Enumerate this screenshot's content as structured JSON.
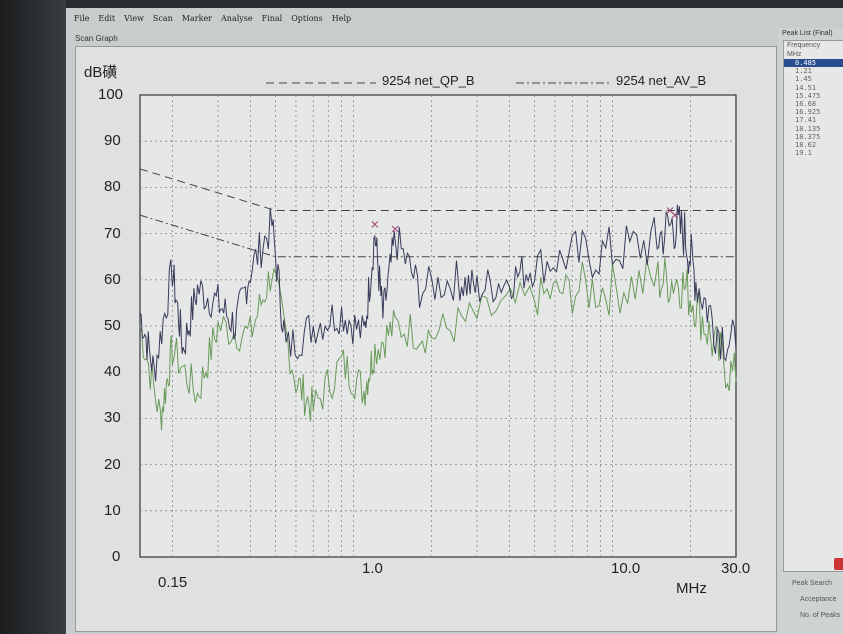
{
  "menu": [
    "File",
    "Edit",
    "View",
    "Scan",
    "Marker",
    "Analyse",
    "Final",
    "Options",
    "Help"
  ],
  "panel_title": "Scan Graph",
  "peak_list": {
    "title": "Peak List (Final)",
    "header1": "Frequency",
    "header2": "MHz",
    "selected": 0,
    "items": [
      "0.485",
      "1.21",
      "1.45",
      "14.51",
      "15.475",
      "16.68",
      "16.925",
      "17.41",
      "18.135",
      "18.375",
      "18.62",
      "19.1"
    ]
  },
  "right_buttons": [
    "Peak Search",
    "Acceptance",
    "No. of Peaks"
  ],
  "chart_data": {
    "type": "line",
    "ylabel": "dB磺",
    "xunit": "MHz",
    "xscale": "log",
    "xlim": [
      0.15,
      30
    ],
    "ylim": [
      0,
      100
    ],
    "yticks": [
      0,
      10,
      20,
      30,
      40,
      50,
      60,
      70,
      80,
      90,
      100
    ],
    "xtick_labels": [
      "0.15",
      "1.0",
      "10.0",
      "30.0"
    ],
    "grid": true,
    "legend": [
      "9254 net_QP_B",
      "9254 net_AV_B"
    ],
    "series": [
      {
        "name": "9254 net_QP_B",
        "kind": "limit",
        "style": "dashed",
        "x": [
          0.15,
          0.5,
          30
        ],
        "y": [
          84,
          75,
          75
        ]
      },
      {
        "name": "9254 net_AV_B",
        "kind": "limit",
        "style": "dashdot",
        "x": [
          0.15,
          0.5,
          30
        ],
        "y": [
          74,
          65,
          65
        ]
      },
      {
        "name": "QP trace",
        "color": "#3a3a5a",
        "x": [
          0.15,
          0.17,
          0.2,
          0.22,
          0.25,
          0.3,
          0.35,
          0.4,
          0.485,
          0.55,
          0.7,
          0.9,
          1.1,
          1.21,
          1.3,
          1.45,
          1.8,
          2.5,
          3,
          4,
          5,
          7,
          10,
          14.5,
          17,
          19,
          21,
          25,
          30
        ],
        "y": [
          53,
          40,
          62,
          45,
          58,
          55,
          50,
          62,
          72,
          45,
          50,
          53,
          48,
          70,
          52,
          69,
          58,
          60,
          58,
          60,
          63,
          65,
          66,
          68,
          72,
          70,
          60,
          50,
          45
        ]
      },
      {
        "name": "AV trace",
        "color": "#6a9a5a",
        "x": [
          0.15,
          0.18,
          0.2,
          0.25,
          0.3,
          0.4,
          0.485,
          0.6,
          0.7,
          0.9,
          1.1,
          1.21,
          1.45,
          2,
          3,
          5,
          7,
          10,
          15,
          18,
          21,
          25,
          30
        ],
        "y": [
          50,
          30,
          45,
          35,
          50,
          48,
          62,
          38,
          32,
          42,
          36,
          45,
          50,
          48,
          52,
          56,
          58,
          58,
          60,
          60,
          55,
          45,
          38
        ]
      }
    ],
    "markers": [
      {
        "x": 1.21,
        "y": 72
      },
      {
        "x": 1.45,
        "y": 71
      },
      {
        "x": 16.68,
        "y": 75
      },
      {
        "x": 17.41,
        "y": 74
      }
    ]
  }
}
